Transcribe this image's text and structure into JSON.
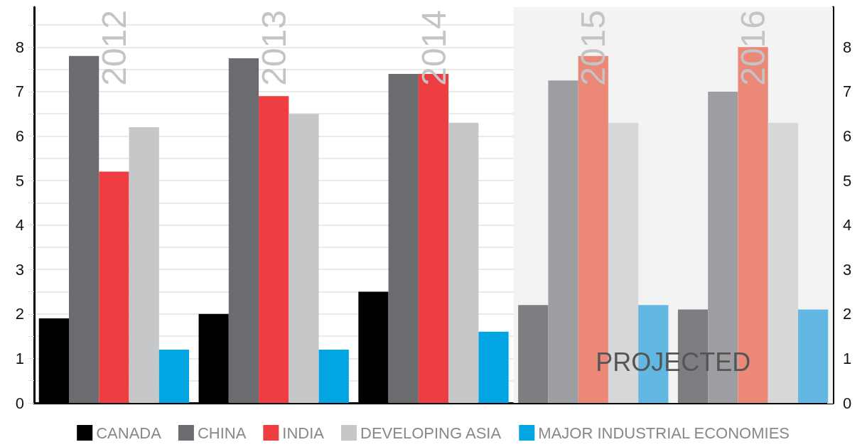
{
  "chart_data": {
    "type": "bar",
    "categories": [
      "2012",
      "2013",
      "2014",
      "2015",
      "2016"
    ],
    "series": [
      {
        "name": "CANADA",
        "color": "#000000",
        "colors": [
          "#000000",
          "#000000",
          "#000000",
          "#7d7e82",
          "#7d7e82"
        ],
        "values": [
          1.9,
          2.0,
          2.5,
          2.2,
          2.1
        ]
      },
      {
        "name": "CHINA",
        "color": "#6b6c70",
        "colors": [
          "#6b6c70",
          "#6b6c70",
          "#6b6c70",
          "#9d9ea1",
          "#9d9ea1"
        ],
        "values": [
          7.8,
          7.75,
          7.4,
          7.25,
          7.0
        ]
      },
      {
        "name": "INDIA",
        "color": "#ee3e42",
        "colors": [
          "#ee3e42",
          "#ee3e42",
          "#ee3e42",
          "#ec8878",
          "#ec8878"
        ],
        "values": [
          5.2,
          6.9,
          7.4,
          7.8,
          8.0
        ]
      },
      {
        "name": "DEVELOPING ASIA",
        "color": "#c6c7c9",
        "colors": [
          "#c6c7c9",
          "#c6c7c9",
          "#c6c7c9",
          "#d6d7d9",
          "#d6d7d9"
        ],
        "values": [
          6.2,
          6.5,
          6.3,
          6.3,
          6.3
        ]
      },
      {
        "name": "MAJOR INDUSTRIAL ECONOMIES",
        "color": "#00a5e2",
        "colors": [
          "#00a5e2",
          "#00a5e2",
          "#00a5e2",
          "#62b8e3",
          "#62b8e3"
        ],
        "values": [
          1.2,
          1.2,
          1.6,
          2.2,
          2.1
        ]
      }
    ],
    "ylim": [
      0,
      8.9
    ],
    "yticks": [
      0,
      {
        "value": 0.5,
        "label": null
      },
      1,
      {
        "value": 1.5,
        "label": null
      },
      2,
      {
        "value": 2.5,
        "label": null
      },
      3,
      {
        "value": 3.5,
        "label": null
      },
      4,
      {
        "value": 4.5,
        "label": null
      },
      5,
      {
        "value": 5.5,
        "label": null
      },
      6,
      {
        "value": 6.5,
        "label": null
      },
      7,
      {
        "value": 7.5,
        "label": null
      },
      8,
      {
        "value": 8.5,
        "label": null
      }
    ],
    "y2lim": [
      0,
      8.9
    ],
    "y2ticks": [
      0,
      {
        "value": 0.5,
        "label": null
      },
      1,
      {
        "value": 1.5,
        "label": null
      },
      2,
      {
        "value": 2.5,
        "label": null
      },
      3,
      {
        "value": 3.5,
        "label": null
      },
      4,
      {
        "value": 4.5,
        "label": null
      },
      5,
      {
        "value": 5.5,
        "label": null
      },
      6,
      {
        "value": 6.5,
        "label": null
      },
      7,
      {
        "value": 7.5,
        "label": null
      },
      8,
      {
        "value": 8.5,
        "label": null
      }
    ],
    "bands": [
      {
        "axis": "x",
        "from": "2015",
        "to": "2016",
        "label": "PROJECTED",
        "color": "#f3f3f3"
      }
    ],
    "grid": "y",
    "legend": "bottom"
  }
}
